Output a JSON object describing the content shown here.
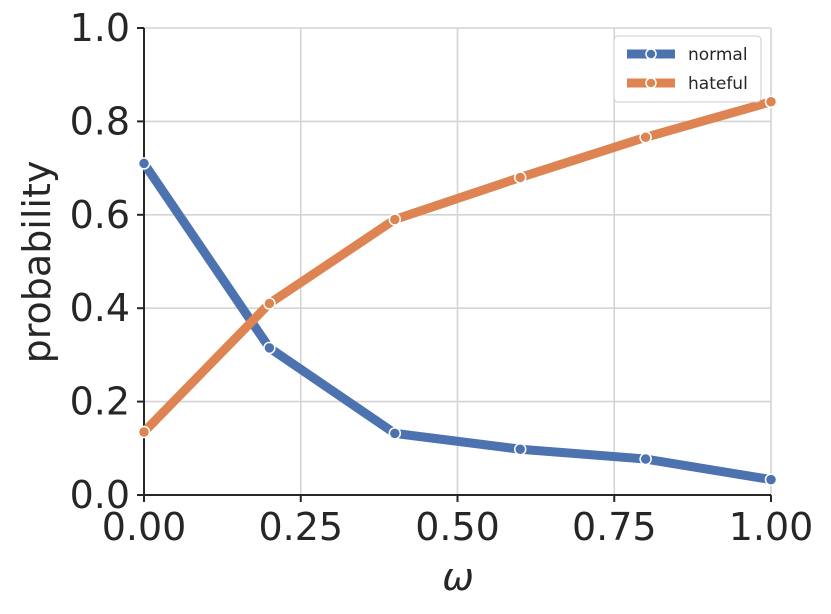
{
  "chart_data": {
    "type": "line",
    "x": [
      0.0,
      0.2,
      0.4,
      0.6,
      0.8,
      1.0
    ],
    "series": [
      {
        "name": "normal",
        "color": "#4c72b0",
        "values": [
          0.71,
          0.315,
          0.132,
          0.098,
          0.077,
          0.033
        ]
      },
      {
        "name": "hateful",
        "color": "#dd8452",
        "values": [
          0.135,
          0.41,
          0.59,
          0.68,
          0.766,
          0.842
        ]
      }
    ],
    "xlabel": "ω",
    "ylabel": "probability",
    "xlim": [
      0.0,
      1.0
    ],
    "ylim": [
      0.0,
      1.0
    ],
    "xticks": [
      0.0,
      0.25,
      0.5,
      0.75,
      1.0
    ],
    "xtick_labels": [
      "0.00",
      "0.25",
      "0.50",
      "0.75",
      "1.00"
    ],
    "yticks": [
      0.0,
      0.2,
      0.4,
      0.6,
      0.8,
      1.0
    ],
    "ytick_labels": [
      "0.0",
      "0.2",
      "0.4",
      "0.6",
      "0.8",
      "1.0"
    ],
    "grid": true,
    "legend_position": "top-right",
    "marker": "circle"
  }
}
